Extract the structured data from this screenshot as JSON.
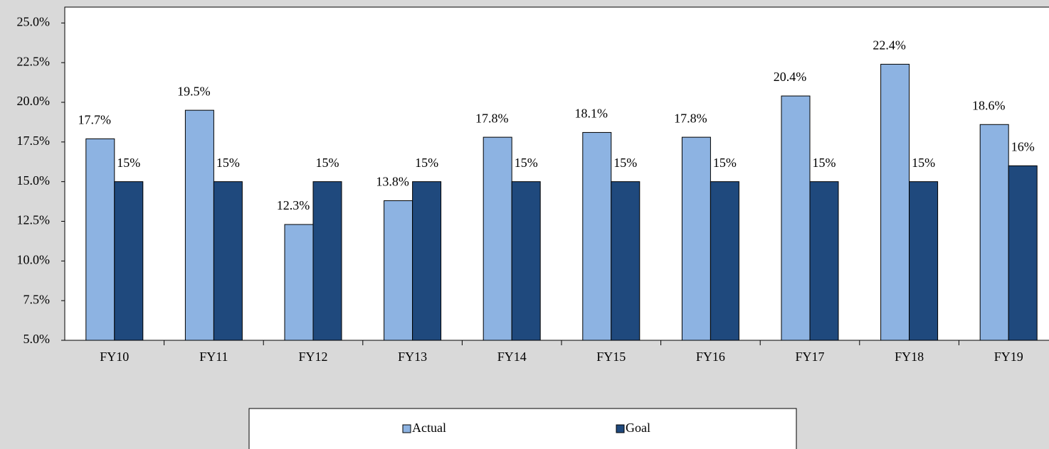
{
  "chart_data": {
    "type": "bar",
    "categories": [
      "FY10",
      "FY11",
      "FY12",
      "FY13",
      "FY14",
      "FY15",
      "FY16",
      "FY17",
      "FY18",
      "FY19"
    ],
    "series": [
      {
        "name": "Actual",
        "color": "#8db3e2",
        "values": [
          17.7,
          19.5,
          12.3,
          13.8,
          17.8,
          18.1,
          17.8,
          20.4,
          22.4,
          18.6
        ],
        "value_labels": [
          "17.7%",
          "19.5%",
          "12.3%",
          "13.8%",
          "17.8%",
          "18.1%",
          "17.8%",
          "20.4%",
          "22.4%",
          "18.6%"
        ]
      },
      {
        "name": "Goal",
        "color": "#1f497d",
        "values": [
          15,
          15,
          15,
          15,
          15,
          15,
          15,
          15,
          15,
          16
        ],
        "value_labels": [
          "15%",
          "15%",
          "15%",
          "15%",
          "15%",
          "15%",
          "15%",
          "15%",
          "15%",
          "16%"
        ]
      }
    ],
    "ylim": [
      5,
      26
    ],
    "yticks": [
      {
        "value": 5,
        "label": "5.0%"
      },
      {
        "value": 7.5,
        "label": "7.5%"
      },
      {
        "value": 10,
        "label": "10.0%"
      },
      {
        "value": 12.5,
        "label": "12.5%"
      },
      {
        "value": 15,
        "label": "15.0%"
      },
      {
        "value": 17.5,
        "label": "17.5%"
      },
      {
        "value": 20,
        "label": "20.0%"
      },
      {
        "value": 22.5,
        "label": "22.5%"
      },
      {
        "value": 25,
        "label": "25.0%"
      }
    ],
    "legend": "bottom"
  }
}
